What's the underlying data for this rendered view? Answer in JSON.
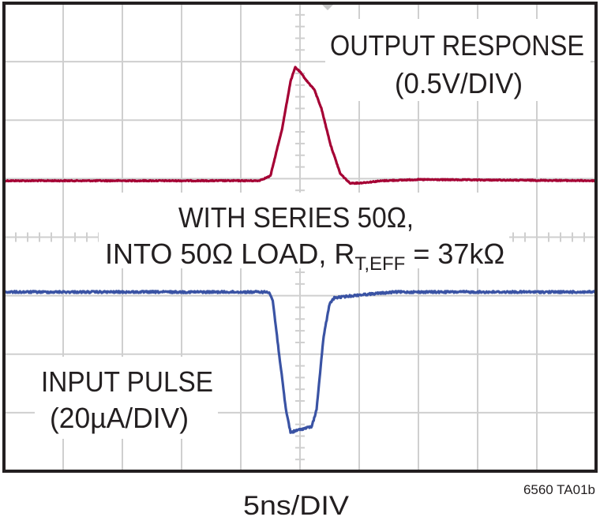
{
  "chart_data": {
    "type": "line",
    "title": "",
    "xlabel": "5ns/DIV",
    "x_divisions": 10,
    "y_divisions": 8,
    "grid": true,
    "x_unit": "ns",
    "x_range_ns": [
      -25,
      25
    ],
    "annotations": {
      "output_title": "OUTPUT RESPONSE",
      "output_scale": "(0.5V/DIV)",
      "condition_line1": "WITH SERIES 50Ω,",
      "condition_line2_a": "INTO 50Ω LOAD, R",
      "condition_line2_sub": "T,EFF",
      "condition_line2_b": " = 37kΩ",
      "input_title": "INPUT PULSE",
      "input_scale": "(20µA/DIV)",
      "figure_id": "6560 TA01b"
    },
    "series": [
      {
        "name": "OUTPUT RESPONSE",
        "unit": "V",
        "color": "#a50034",
        "t": [
          -25,
          -3.5,
          -2.5,
          -1.5,
          -0.8,
          -0.4,
          0,
          0.6,
          1.2,
          1.8,
          2.6,
          3.4,
          4.2,
          5,
          7,
          10,
          25
        ],
        "values": [
          0,
          0,
          0.04,
          0.45,
          0.85,
          0.97,
          0.93,
          0.85,
          0.78,
          0.62,
          0.3,
          0.06,
          -0.02,
          -0.02,
          0,
          0.01,
          0
        ]
      },
      {
        "name": "INPUT PULSE",
        "unit": "µA",
        "color": "#3a53a4",
        "t": [
          -25,
          -2.6,
          -2.3,
          -1.8,
          -1.2,
          -0.8,
          0,
          1.0,
          1.4,
          2.0,
          2.5,
          2.9,
          5,
          8,
          25
        ],
        "values": [
          0,
          0,
          -3,
          -20,
          -40,
          -48,
          -47,
          -46,
          -40,
          -15,
          -4,
          -2,
          -1,
          0,
          0
        ]
      }
    ]
  }
}
